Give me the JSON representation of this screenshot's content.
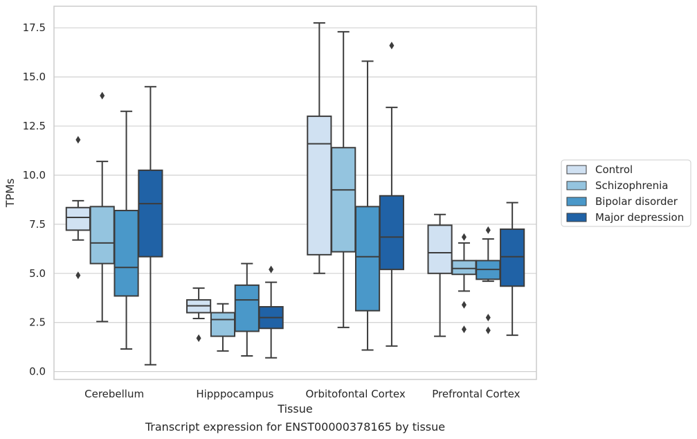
{
  "chart_data": {
    "type": "box",
    "title": "",
    "caption": "Transcript expression for ENST00000378165 by tissue",
    "xlabel": "Tissue",
    "ylabel": "TPMs",
    "ylim": [
      -0.4,
      18.6
    ],
    "yticks": [
      0.0,
      2.5,
      5.0,
      7.5,
      10.0,
      12.5,
      15.0,
      17.5
    ],
    "ytick_labels": [
      "0.0",
      "2.5",
      "5.0",
      "7.5",
      "10.0",
      "12.5",
      "15.0",
      "17.5"
    ],
    "grid": true,
    "legend_position": "right",
    "categories": [
      "Cerebellum",
      "Hipppocampus",
      "Orbitofontal Cortex",
      "Prefrontal Cortex"
    ],
    "series": [
      {
        "name": "Control",
        "color": "#d0e1f2",
        "boxes": [
          {
            "whislo": 6.7,
            "q1": 7.2,
            "med": 7.85,
            "q3": 8.35,
            "whishi": 8.7,
            "fliers": [
              11.8,
              4.9
            ]
          },
          {
            "whislo": 2.7,
            "q1": 3.0,
            "med": 3.35,
            "q3": 3.65,
            "whishi": 4.25,
            "fliers": [
              1.7
            ]
          },
          {
            "whislo": 5.0,
            "q1": 5.95,
            "med": 11.6,
            "q3": 13.0,
            "whishi": 17.75,
            "fliers": []
          },
          {
            "whislo": 1.8,
            "q1": 5.0,
            "med": 6.05,
            "q3": 7.45,
            "whishi": 8.0,
            "fliers": []
          }
        ]
      },
      {
        "name": "Schizophrenia",
        "color": "#94c4df",
        "boxes": [
          {
            "whislo": 2.55,
            "q1": 5.5,
            "med": 6.55,
            "q3": 8.4,
            "whishi": 10.7,
            "fliers": [
              14.05
            ]
          },
          {
            "whislo": 1.05,
            "q1": 1.8,
            "med": 2.65,
            "q3": 3.0,
            "whishi": 3.45,
            "fliers": []
          },
          {
            "whislo": 2.25,
            "q1": 6.1,
            "med": 9.25,
            "q3": 11.4,
            "whishi": 17.3,
            "fliers": []
          },
          {
            "whislo": 4.1,
            "q1": 4.95,
            "med": 5.25,
            "q3": 5.65,
            "whishi": 6.55,
            "fliers": [
              6.85,
              3.4,
              2.15
            ]
          }
        ]
      },
      {
        "name": "Bipolar disorder",
        "color": "#4a98c9",
        "boxes": [
          {
            "whislo": 1.15,
            "q1": 3.85,
            "med": 5.3,
            "q3": 8.2,
            "whishi": 13.25,
            "fliers": []
          },
          {
            "whislo": 0.8,
            "q1": 2.05,
            "med": 3.65,
            "q3": 4.4,
            "whishi": 5.5,
            "fliers": []
          },
          {
            "whislo": 1.1,
            "q1": 3.1,
            "med": 5.85,
            "q3": 8.4,
            "whishi": 15.8,
            "fliers": []
          },
          {
            "whislo": 4.6,
            "q1": 4.7,
            "med": 5.2,
            "q3": 5.65,
            "whishi": 6.75,
            "fliers": [
              7.2,
              2.75,
              2.1
            ]
          }
        ]
      },
      {
        "name": "Major depression",
        "color": "#2062a6",
        "boxes": [
          {
            "whislo": 0.35,
            "q1": 5.85,
            "med": 8.55,
            "q3": 10.25,
            "whishi": 14.5,
            "fliers": []
          },
          {
            "whislo": 0.7,
            "q1": 2.2,
            "med": 2.75,
            "q3": 3.3,
            "whishi": 4.55,
            "fliers": [
              5.2
            ]
          },
          {
            "whislo": 1.3,
            "q1": 5.2,
            "med": 6.85,
            "q3": 8.95,
            "whishi": 13.45,
            "fliers": [
              16.6
            ]
          },
          {
            "whislo": 1.85,
            "q1": 4.35,
            "med": 5.85,
            "q3": 7.25,
            "whishi": 8.6,
            "fliers": []
          }
        ]
      }
    ]
  }
}
